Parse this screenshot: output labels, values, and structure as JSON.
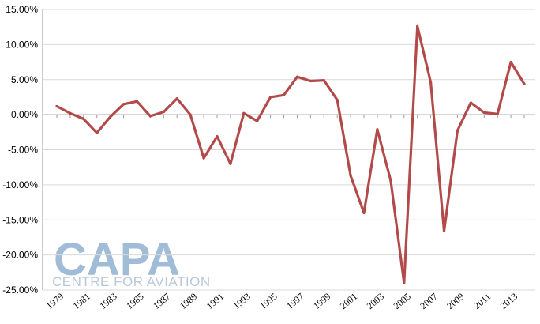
{
  "chart_data": {
    "type": "line",
    "title": "",
    "xlabel": "",
    "ylabel": "",
    "ylim": [
      -25,
      15
    ],
    "y_ticks": [
      15,
      10,
      5,
      0,
      -5,
      -10,
      -15,
      -20,
      -25
    ],
    "y_tick_labels": [
      "15.00%",
      "10.00%",
      "5.00%",
      "0.00%",
      "-5.00%",
      "-10.00%",
      "-15.00%",
      "-20.00%",
      "-25.00%"
    ],
    "x_tick_labels": [
      "1979",
      "1981",
      "1983",
      "1985",
      "1987",
      "1989",
      "1991",
      "1993",
      "1995",
      "1997",
      "1999",
      "2001",
      "2003",
      "2005",
      "2007",
      "2009",
      "2011",
      "2013"
    ],
    "grid": "horizontal",
    "legend": "none",
    "series": [
      {
        "color": "#b34a4a",
        "x": [
          1979,
          1980,
          1981,
          1982,
          1983,
          1984,
          1985,
          1986,
          1987,
          1988,
          1989,
          1990,
          1991,
          1992,
          1993,
          1994,
          1995,
          1996,
          1997,
          1998,
          1999,
          2000,
          2001,
          2002,
          2003,
          2004,
          2005,
          2006,
          2007,
          2008,
          2009,
          2010,
          2011,
          2012,
          2013,
          2014
        ],
        "values": [
          1.2,
          0.2,
          -0.6,
          -2.6,
          -0.3,
          1.5,
          1.9,
          -0.2,
          0.4,
          2.3,
          0.0,
          -6.2,
          -3.1,
          -7.0,
          0.2,
          -0.9,
          2.5,
          2.8,
          5.4,
          4.8,
          4.9,
          2.1,
          -8.7,
          -14.0,
          -2.1,
          -9.4,
          -24.0,
          12.6,
          4.6,
          -16.6,
          -2.3,
          1.7,
          0.3,
          0.1,
          7.5,
          4.4
        ]
      }
    ]
  },
  "watermark": {
    "main": "CAPA",
    "sub": "CENTRE FOR AVIATION",
    "color_main": "#8fb0d0",
    "color_sub": "#b8c8d8"
  }
}
